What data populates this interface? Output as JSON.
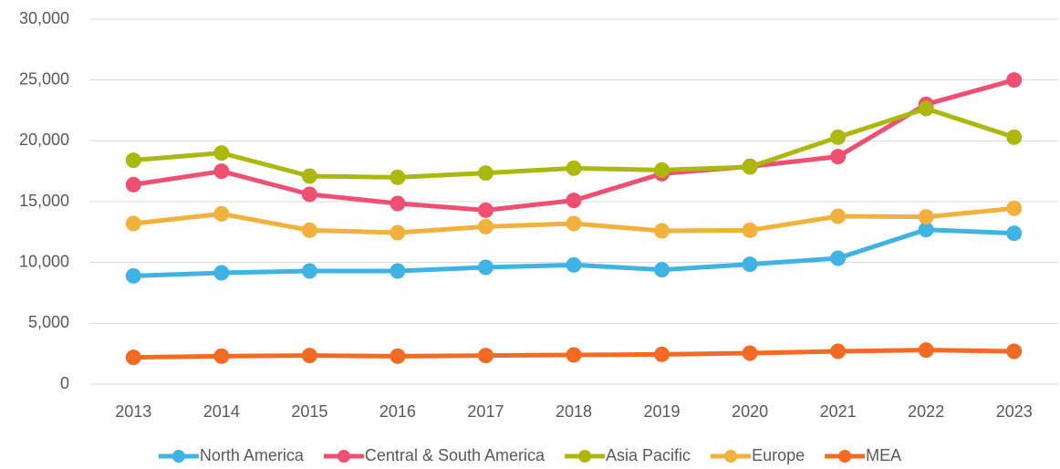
{
  "chart_data": {
    "type": "line",
    "categories": [
      "2013",
      "2014",
      "2015",
      "2016",
      "2017",
      "2018",
      "2019",
      "2020",
      "2021",
      "2022",
      "2023"
    ],
    "series": [
      {
        "name": "North America",
        "color": "#3fb3e3",
        "values": [
          8900,
          9150,
          9300,
          9300,
          9600,
          9800,
          9400,
          9850,
          10350,
          12700,
          12400
        ]
      },
      {
        "name": "Central & South America",
        "color": "#ef4f70",
        "values": [
          16400,
          17500,
          15600,
          14850,
          14300,
          15100,
          17300,
          17900,
          18700,
          23000,
          25000
        ]
      },
      {
        "name": "Asia Pacific",
        "color": "#abb80d",
        "values": [
          18400,
          19000,
          17100,
          17000,
          17350,
          17750,
          17600,
          17850,
          20300,
          22650,
          20300
        ]
      },
      {
        "name": "Europe",
        "color": "#f1b13c",
        "values": [
          13200,
          14000,
          12650,
          12450,
          12950,
          13200,
          12600,
          12650,
          13800,
          13750,
          14450
        ]
      },
      {
        "name": "MEA",
        "color": "#f36b22",
        "values": [
          2200,
          2300,
          2350,
          2300,
          2350,
          2400,
          2450,
          2550,
          2700,
          2800,
          2700
        ]
      }
    ],
    "ylim": [
      0,
      30000
    ],
    "yticks": [
      0,
      {
        "value": 5000,
        "label": "5,000"
      },
      {
        "value": 10000,
        "label": "10,000"
      },
      {
        "value": 15000,
        "label": "15,000"
      },
      {
        "value": 20000,
        "label": "20,000"
      },
      {
        "value": 25000,
        "label": "25,000"
      },
      {
        "value": 30000,
        "label": "30,000"
      }
    ],
    "grid": true,
    "legend": "bottom"
  }
}
